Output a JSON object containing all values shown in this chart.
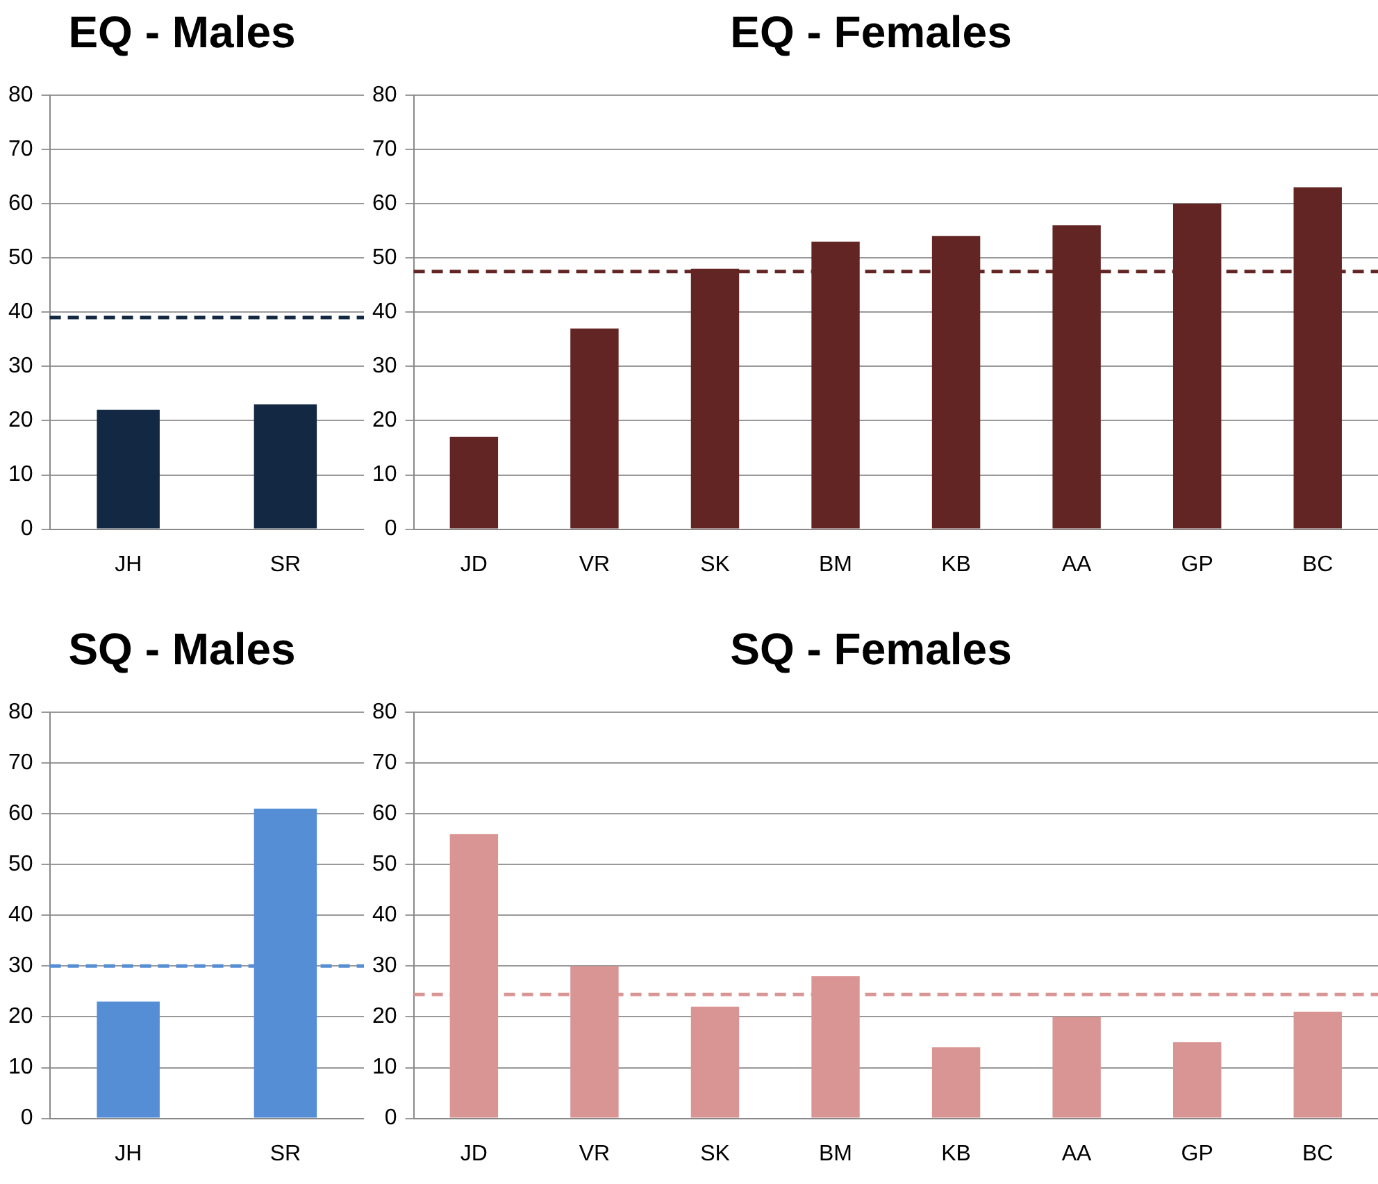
{
  "chart_data": [
    {
      "type": "bar",
      "title": "EQ - Males",
      "categories": [
        "JH",
        "SR"
      ],
      "values": [
        22,
        23
      ],
      "color": "#132842",
      "ylim": [
        0,
        80
      ],
      "yticks": [
        0,
        10,
        20,
        30,
        40,
        50,
        60,
        70,
        80
      ],
      "grid": "y",
      "ref_lines": [
        {
          "axis": "y",
          "value": 39,
          "color": "#132842",
          "line_style": "dashed"
        }
      ]
    },
    {
      "type": "bar",
      "title": "EQ - Females",
      "categories": [
        "JD",
        "VR",
        "SK",
        "BM",
        "KB",
        "AA",
        "GP",
        "BC"
      ],
      "values": [
        17,
        37,
        48,
        53,
        54,
        56,
        60,
        63
      ],
      "color": "#632523",
      "ylim": [
        0,
        80
      ],
      "yticks": [
        0,
        10,
        20,
        30,
        40,
        50,
        60,
        70,
        80
      ],
      "grid": "y",
      "ref_lines": [
        {
          "axis": "y",
          "value": 47.5,
          "color": "#632523",
          "line_style": "dashed"
        }
      ]
    },
    {
      "type": "bar",
      "title": "SQ - Males",
      "categories": [
        "JH",
        "SR"
      ],
      "values": [
        23,
        61
      ],
      "color": "#558ed5",
      "ylim": [
        0,
        80
      ],
      "yticks": [
        0,
        10,
        20,
        30,
        40,
        50,
        60,
        70,
        80
      ],
      "grid": "y",
      "ref_lines": [
        {
          "axis": "y",
          "value": 30,
          "color": "#558ed5",
          "line_style": "dashed"
        }
      ]
    },
    {
      "type": "bar",
      "title": "SQ - Females",
      "categories": [
        "JD",
        "VR",
        "SK",
        "BM",
        "KB",
        "AA",
        "GP",
        "BC"
      ],
      "values": [
        56,
        30,
        22,
        28,
        14,
        20,
        15,
        21
      ],
      "color": "#d99594",
      "ylim": [
        0,
        80
      ],
      "yticks": [
        0,
        10,
        20,
        30,
        40,
        50,
        60,
        70,
        80
      ],
      "grid": "y",
      "ref_lines": [
        {
          "axis": "y",
          "value": 24.4,
          "color": "#d99594",
          "line_style": "dashed"
        }
      ]
    }
  ]
}
